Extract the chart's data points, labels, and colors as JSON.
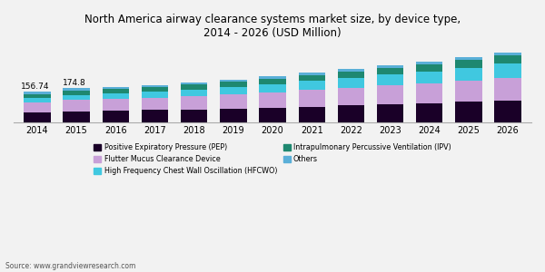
{
  "title": "North America airway clearance systems market size, by device type,\n2014 - 2026 (USD Million)",
  "years": [
    2014,
    2015,
    2016,
    2017,
    2018,
    2019,
    2020,
    2021,
    2022,
    2023,
    2024,
    2025,
    2026
  ],
  "series": {
    "PEP": [
      52,
      57,
      60,
      63,
      67,
      71,
      75,
      80,
      86,
      92,
      98,
      105,
      112
    ],
    "Flutter": [
      50,
      57,
      60,
      63,
      67,
      72,
      78,
      85,
      91,
      96,
      102,
      108,
      115
    ],
    "HFCWO": [
      22,
      27,
      28,
      30,
      32,
      36,
      41,
      46,
      50,
      55,
      60,
      66,
      73
    ],
    "IPV": [
      18,
      22,
      23,
      24,
      26,
      28,
      29,
      30,
      32,
      34,
      36,
      38,
      41
    ],
    "Others": [
      15,
      12,
      11,
      11,
      11,
      12,
      12,
      12,
      13,
      13,
      14,
      15,
      15
    ]
  },
  "label_2014": "156.74",
  "label_2015": "174.8",
  "colors": {
    "PEP": "#1a0028",
    "Flutter": "#c8a0d8",
    "HFCWO": "#40c8e0",
    "IPV": "#1e8870",
    "Others": "#5aafd8"
  },
  "legend_labels": {
    "PEP": "Positive Expiratory Pressure (PEP)",
    "Flutter": "Flutter Mucus Clearance Device",
    "HFCWO": "High Frequency Chest Wall Oscillation (HFCWO)",
    "IPV": "Intrapulmonary Percussive Ventilation (IPV)",
    "Others": "Others"
  },
  "source": "Source: www.grandviewresearch.com",
  "bg_color": "#f2f2f2",
  "ylim": [
    0,
    400
  ],
  "bar_width": 0.68
}
